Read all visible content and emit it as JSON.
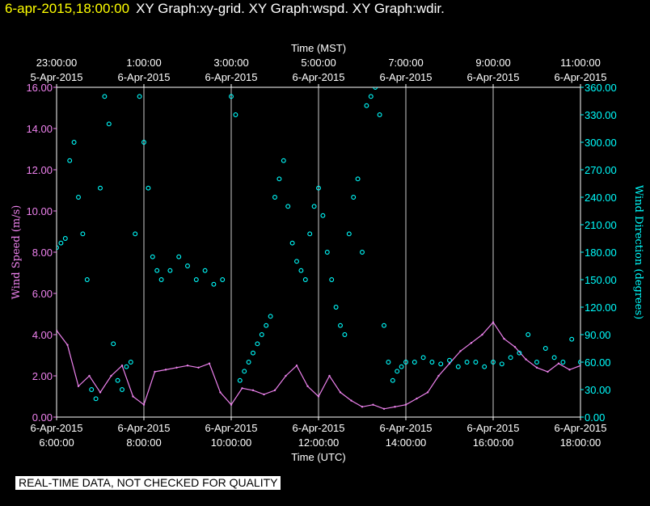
{
  "header": {
    "date": "6-apr-2015,18:00:00",
    "graphs": "XY Graph:xy-grid.  XY Graph:wspd.  XY Graph:wdir."
  },
  "disclaimer": "REAL-TIME DATA, NOT CHECKED FOR QUALITY",
  "colors": {
    "background": "#000000",
    "speed": "#ee82ee",
    "direction": "#00ffff",
    "grid": "#ffffff",
    "header_date": "#ffff00"
  },
  "chart_data": {
    "type": "line",
    "top_axis_label": "Time (MST)",
    "top_ticks": [
      {
        "x": 0,
        "time": "23:00:00",
        "date": "5-Apr-2015"
      },
      {
        "x": 2,
        "time": "1:00:00",
        "date": "6-Apr-2015"
      },
      {
        "x": 4,
        "time": "3:00:00",
        "date": "6-Apr-2015"
      },
      {
        "x": 6,
        "time": "5:00:00",
        "date": "6-Apr-2015"
      },
      {
        "x": 8,
        "time": "7:00:00",
        "date": "6-Apr-2015"
      },
      {
        "x": 10,
        "time": "9:00:00",
        "date": "6-Apr-2015"
      },
      {
        "x": 12,
        "time": "11:00:00",
        "date": "6-Apr-2015"
      }
    ],
    "bottom_axis_label": "Time (UTC)",
    "bottom_ticks": [
      {
        "x": 0,
        "date": "6-Apr-2015",
        "time": "6:00:00"
      },
      {
        "x": 2,
        "date": "6-Apr-2015",
        "time": "8:00:00"
      },
      {
        "x": 4,
        "date": "6-Apr-2015",
        "time": "10:00:00"
      },
      {
        "x": 6,
        "date": "6-Apr-2015",
        "time": "12:00:00"
      },
      {
        "x": 8,
        "date": "6-Apr-2015",
        "time": "14:00:00"
      },
      {
        "x": 10,
        "date": "6-Apr-2015",
        "time": "16:00:00"
      },
      {
        "x": 12,
        "date": "6-Apr-2015",
        "time": "18:00:00"
      }
    ],
    "xlim": [
      0,
      12
    ],
    "left_axis": {
      "label": "Wind Speed (m/s)",
      "ylim": [
        0,
        16
      ],
      "ticks": [
        "0.00",
        "2.00",
        "4.00",
        "6.00",
        "8.00",
        "10.00",
        "12.00",
        "14.00",
        "16.00"
      ]
    },
    "right_axis": {
      "label": "Wind Direction (degrees)",
      "ylim": [
        0,
        360
      ],
      "ticks": [
        "0.00",
        "30.00",
        "60.00",
        "90.00",
        "120.00",
        "150.00",
        "180.00",
        "210.00",
        "240.00",
        "270.00",
        "300.00",
        "330.00",
        "360.00"
      ]
    },
    "series": [
      {
        "axis": "left",
        "x": [
          0,
          0.25,
          0.5,
          0.75,
          1,
          1.25,
          1.5,
          1.75,
          2,
          2.25,
          2.5,
          2.75,
          3,
          3.25,
          3.5,
          3.75,
          4,
          4.25,
          4.5,
          4.75,
          5,
          5.25,
          5.5,
          5.75,
          6,
          6.25,
          6.5,
          6.75,
          7,
          7.25,
          7.5,
          7.75,
          8,
          8.25,
          8.5,
          8.75,
          9,
          9.25,
          9.5,
          9.75,
          10,
          10.25,
          10.5,
          10.75,
          11,
          11.25,
          11.5,
          11.75,
          12
        ],
        "values": [
          4.2,
          3.5,
          1.5,
          2.0,
          1.2,
          2.0,
          2.5,
          1.0,
          0.6,
          2.2,
          2.3,
          2.4,
          2.5,
          2.4,
          2.6,
          1.2,
          0.6,
          1.4,
          1.3,
          1.1,
          1.3,
          2.0,
          2.5,
          1.5,
          1.0,
          2.0,
          1.2,
          0.8,
          0.5,
          0.6,
          0.4,
          0.5,
          0.6,
          0.9,
          1.2,
          2.0,
          2.6,
          3.2,
          3.6,
          4.0,
          4.6,
          3.8,
          3.4,
          2.8,
          2.4,
          2.2,
          2.6,
          2.3,
          2.5
        ]
      },
      {
        "axis": "right",
        "x": [
          0,
          0.1,
          0.2,
          0.3,
          0.4,
          0.5,
          0.6,
          0.7,
          0.8,
          0.9,
          1.0,
          1.1,
          1.2,
          1.3,
          1.4,
          1.5,
          1.6,
          1.7,
          1.8,
          1.9,
          2.0,
          2.1,
          2.2,
          2.3,
          2.4,
          2.6,
          2.8,
          3.0,
          3.2,
          3.4,
          3.6,
          3.8,
          4.0,
          4.1,
          4.2,
          4.3,
          4.4,
          4.5,
          4.6,
          4.7,
          4.8,
          4.9,
          5.0,
          5.1,
          5.2,
          5.3,
          5.4,
          5.5,
          5.6,
          5.7,
          5.8,
          5.9,
          6.0,
          6.1,
          6.2,
          6.3,
          6.4,
          6.5,
          6.6,
          6.7,
          6.8,
          6.9,
          7.0,
          7.1,
          7.2,
          7.3,
          7.4,
          7.5,
          7.6,
          7.7,
          7.8,
          7.9,
          8.0,
          8.2,
          8.4,
          8.6,
          8.8,
          9.0,
          9.2,
          9.4,
          9.6,
          9.8,
          10.0,
          10.2,
          10.4,
          10.6,
          10.8,
          11.0,
          11.2,
          11.4,
          11.6,
          11.8,
          12.0
        ],
        "values": [
          185,
          190,
          195,
          280,
          300,
          240,
          200,
          150,
          30,
          20,
          250,
          350,
          320,
          80,
          40,
          30,
          55,
          60,
          200,
          350,
          300,
          250,
          175,
          160,
          150,
          160,
          175,
          165,
          150,
          160,
          145,
          150,
          350,
          330,
          40,
          50,
          60,
          70,
          80,
          90,
          100,
          110,
          240,
          260,
          280,
          230,
          190,
          170,
          160,
          150,
          200,
          230,
          250,
          220,
          180,
          150,
          120,
          100,
          90,
          200,
          240,
          260,
          180,
          340,
          350,
          360,
          330,
          100,
          60,
          40,
          50,
          55,
          60,
          60,
          65,
          60,
          58,
          62,
          55,
          60,
          60,
          55,
          60,
          58,
          65,
          70,
          90,
          60,
          75,
          65,
          60,
          85,
          60
        ]
      }
    ]
  }
}
